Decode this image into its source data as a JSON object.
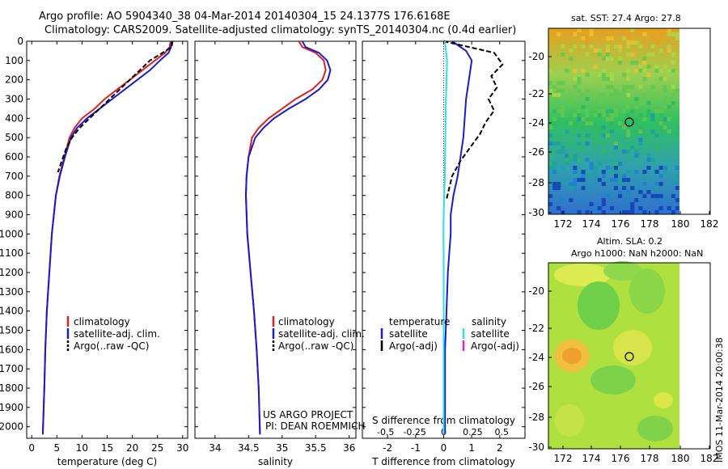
{
  "header": {
    "line1": "Argo profile: AO 5904340_38 04-Mar-2014 20140304_15 24.1377S 176.6168E",
    "line2": "Climatology: CARS2009. Satellite-adjusted climatology: synTS_20140304.nc (0.4d earlier)"
  },
  "colors": {
    "climatology": "#e02020",
    "satellite": "#1a1ad0",
    "argo": "#000000",
    "sal_satellite": "#30e0e0",
    "sal_argo": "#e020e0"
  },
  "depth_axis": {
    "ticks": [
      0,
      100,
      200,
      300,
      400,
      500,
      600,
      700,
      800,
      900,
      1000,
      1100,
      1200,
      1300,
      1400,
      1500,
      1600,
      1700,
      1800,
      1900,
      2000
    ],
    "labels": [
      "0",
      "100",
      "200",
      "300",
      "400",
      "500",
      "600",
      "700",
      "800",
      "900",
      "1000",
      "1100",
      "1200",
      "1300",
      "1400",
      "1500",
      "1600",
      "1700",
      "1800",
      "1900",
      "2000"
    ]
  },
  "chart_data": [
    {
      "type": "line",
      "xlabel": "temperature (deg C)",
      "xlim": [
        -1,
        31
      ],
      "ylim": [
        2060,
        0
      ],
      "xticks": [
        0,
        5,
        10,
        15,
        20,
        25,
        30
      ],
      "xtick_labels": [
        "0",
        "5",
        "10",
        "15",
        "20",
        "25",
        "30"
      ],
      "legend": {
        "placement": "middle-left",
        "entries": [
          "climatology",
          "satellite-adj. clim.",
          "Argo(..raw -QC)"
        ]
      },
      "series": [
        {
          "name": "climatology",
          "style": "solid",
          "color": "#e02020",
          "x": [
            27.6,
            27.4,
            26.5,
            24.5,
            22,
            19.5,
            17,
            14.5,
            12.5,
            10,
            8.5,
            7.5,
            6.5,
            5.5,
            4.8,
            4,
            3.5,
            3,
            2.7,
            2.5,
            2.2
          ],
          "y": [
            0,
            30,
            60,
            100,
            150,
            200,
            250,
            300,
            350,
            400,
            450,
            500,
            600,
            700,
            800,
            1000,
            1200,
            1400,
            1600,
            1800,
            2040
          ]
        },
        {
          "name": "satellite-adj. clim.",
          "style": "solid",
          "color": "#1a1ad0",
          "x": [
            27.8,
            27.7,
            27.2,
            25.5,
            23.5,
            21,
            18.5,
            16,
            13.5,
            11,
            9,
            7.8,
            6.6,
            5.6,
            4.8,
            4,
            3.5,
            3,
            2.7,
            2.5,
            2.2
          ],
          "y": [
            0,
            30,
            60,
            100,
            150,
            200,
            250,
            300,
            350,
            400,
            450,
            500,
            600,
            700,
            800,
            1000,
            1200,
            1400,
            1600,
            1800,
            2040
          ]
        },
        {
          "name": "Argo(..raw -QC)",
          "style": "dashed",
          "color": "#000000",
          "x": [
            28,
            27.8,
            26,
            23.5,
            21.5,
            19.5,
            17.5,
            15.5,
            13.5,
            11.5,
            9.5,
            8,
            6.8,
            6,
            5.2
          ],
          "y": [
            0,
            30,
            60,
            100,
            150,
            200,
            250,
            300,
            350,
            400,
            450,
            500,
            560,
            620,
            680
          ]
        }
      ]
    },
    {
      "type": "line",
      "xlabel": "salinity",
      "xlim": [
        33.7,
        36.1
      ],
      "ylim": [
        2060,
        0
      ],
      "xticks": [
        34,
        34.5,
        35,
        35.5,
        36
      ],
      "xtick_labels": [
        "34",
        "34.5",
        "35",
        "35.5",
        "36"
      ],
      "legend": {
        "placement": "middle-right",
        "entries": [
          "climatology",
          "satellite-adj. clim.",
          "Argo(..raw -QC)"
        ]
      },
      "annotation": [
        "US ARGO PROJECT",
        "PI: DEAN ROEMMICH"
      ],
      "series": [
        {
          "name": "climatology",
          "style": "solid",
          "color": "#e02020",
          "x": [
            35.25,
            35.3,
            35.5,
            35.62,
            35.65,
            35.6,
            35.45,
            35.2,
            35,
            34.8,
            34.65,
            34.55,
            34.5,
            34.47,
            34.46,
            34.48,
            34.53,
            34.58,
            34.62,
            34.65,
            34.67
          ],
          "y": [
            0,
            30,
            60,
            100,
            150,
            200,
            250,
            300,
            350,
            400,
            450,
            500,
            600,
            700,
            800,
            1000,
            1200,
            1400,
            1600,
            1800,
            2040
          ]
        },
        {
          "name": "satellite-adj. clim.",
          "style": "solid",
          "color": "#1a1ad0",
          "x": [
            35.3,
            35.35,
            35.55,
            35.67,
            35.72,
            35.68,
            35.55,
            35.35,
            35.1,
            34.88,
            34.72,
            34.6,
            34.5,
            34.47,
            34.46,
            34.48,
            34.53,
            34.58,
            34.62,
            34.65,
            34.67
          ],
          "y": [
            0,
            30,
            60,
            100,
            150,
            200,
            250,
            300,
            350,
            400,
            450,
            500,
            600,
            700,
            800,
            1000,
            1200,
            1400,
            1600,
            1800,
            2040
          ]
        }
      ]
    },
    {
      "type": "line",
      "xlabel": "T difference from climatology",
      "xlabel2": "S difference from climatology",
      "xlim": [
        -2.9,
        2.9
      ],
      "ylim": [
        2060,
        0
      ],
      "xticks": [
        -2,
        -1,
        0,
        1,
        2
      ],
      "xtick_labels": [
        "-2",
        "-1",
        "0",
        "1",
        "2"
      ],
      "xticks2": [
        -0.5,
        -0.25,
        0,
        0.25,
        0.5
      ],
      "xtick2_labels": [
        "-0.5",
        "-0.25",
        "0",
        "0.25",
        "0.5"
      ],
      "legend": {
        "placement": "bottom",
        "headers": [
          "temperature",
          "salinity"
        ],
        "entries": [
          "satellite",
          "Argo(-adj)",
          "satellite",
          "Argo(-adj)"
        ]
      },
      "series": [
        {
          "name": "temperature satellite",
          "style": "solid",
          "color": "#1a1ad0",
          "x": [
            0.3,
            0.8,
            1.0,
            0.9,
            0.8,
            0.75,
            0.7,
            0.6,
            0.5,
            0.35,
            0.25,
            0.25,
            0.2,
            0.15,
            0.1,
            0.05,
            0.05,
            0.05
          ],
          "y": [
            0,
            50,
            100,
            200,
            300,
            400,
            500,
            600,
            700,
            800,
            900,
            1000,
            1100,
            1200,
            1400,
            1600,
            1800,
            2040
          ]
        },
        {
          "name": "temperature Argo(-adj)",
          "style": "dashed",
          "color": "#000000",
          "x": [
            0.0,
            1.2,
            1.8,
            2.1,
            1.7,
            1.9,
            1.6,
            1.8,
            1.5,
            1.3,
            1.0,
            0.6,
            0.3,
            0.1
          ],
          "y": [
            0,
            40,
            60,
            120,
            180,
            240,
            300,
            360,
            420,
            480,
            540,
            620,
            700,
            820
          ]
        },
        {
          "name": "salinity satellite",
          "style": "solid",
          "color": "#30e0e0",
          "x": [
            0.04,
            0.08,
            0.12,
            0.1,
            0.08,
            0.07,
            0.06,
            0.05,
            0.04,
            0.02,
            0.0,
            -0.01,
            0.0,
            0.0,
            0.0,
            0.0,
            0.0,
            0.0
          ],
          "y": [
            0,
            50,
            100,
            200,
            300,
            400,
            500,
            600,
            700,
            800,
            900,
            1000,
            1100,
            1200,
            1400,
            1600,
            1800,
            2040
          ]
        }
      ]
    }
  ],
  "maps": {
    "sst": {
      "title": "sat. SST: 27.4  Argo: 27.8",
      "xticks": [
        "172",
        "174",
        "176",
        "178",
        "180",
        "182"
      ],
      "yticks": [
        "-20",
        "-22",
        "-24",
        "-26",
        "-28",
        "-30"
      ]
    },
    "sla": {
      "title1": "Altim. SLA: 0.2",
      "title2": "Argo h1000: NaN h2000: NaN",
      "xticks": [
        "172",
        "174",
        "176",
        "178",
        "180",
        "182"
      ],
      "yticks": [
        "-20",
        "-22",
        "-24",
        "-26",
        "-28",
        "-30"
      ]
    }
  },
  "footer": {
    "imos": "IMOS 11-Mar-2014 20:00:38"
  }
}
